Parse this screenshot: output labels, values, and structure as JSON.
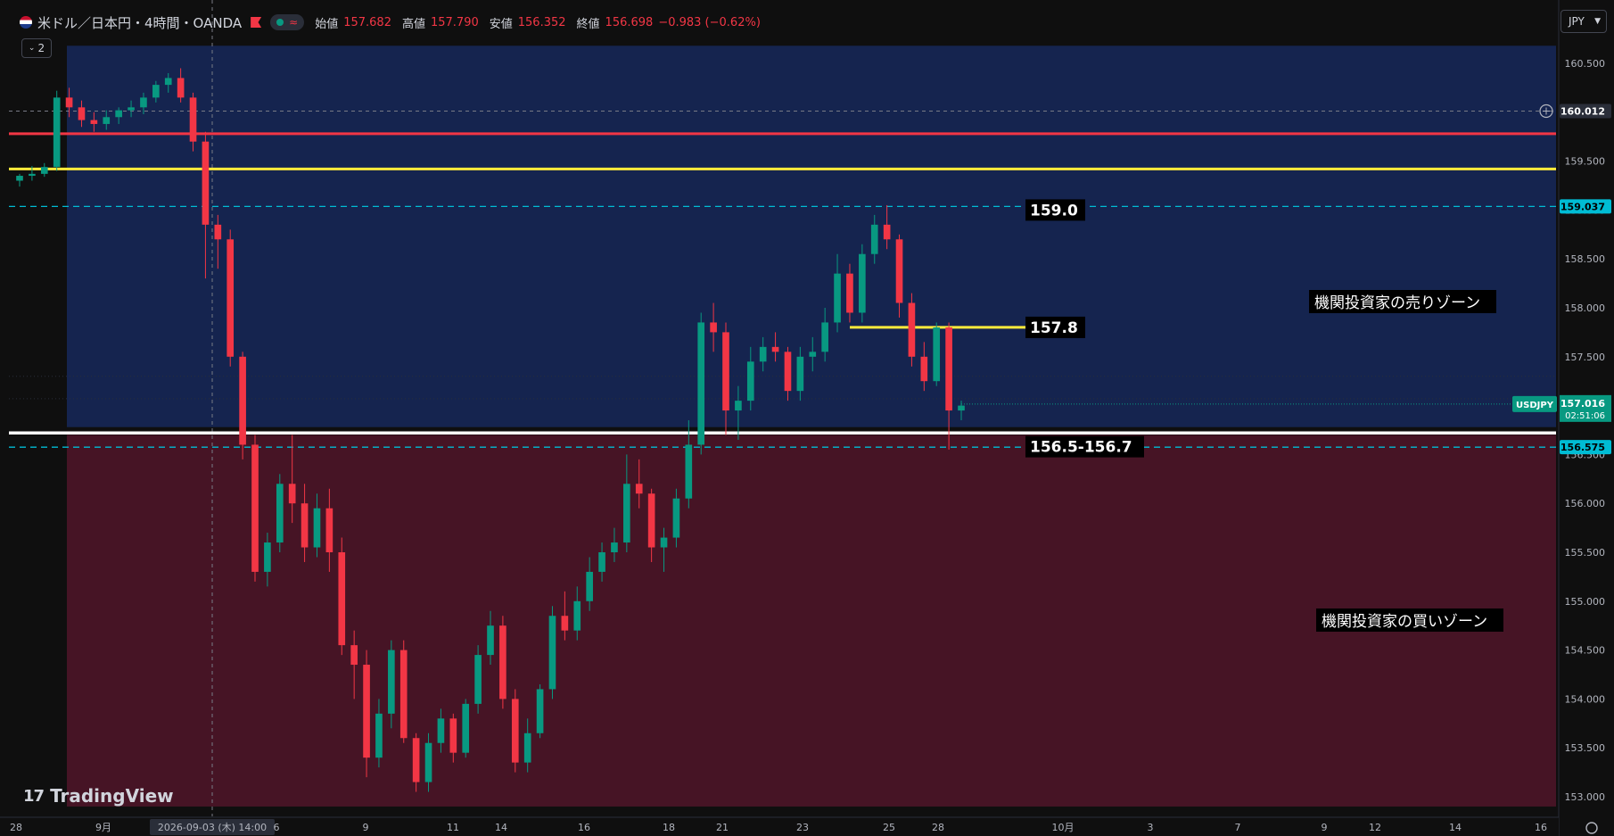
{
  "header": {
    "symbol": "米ドル／日本円・4時間・OANDA",
    "collapse_count": "2",
    "ohlc": [
      {
        "label": "始値",
        "value": "157.682"
      },
      {
        "label": "高値",
        "value": "157.790"
      },
      {
        "label": "安値",
        "value": "156.352"
      },
      {
        "label": "終値",
        "value": "156.698"
      }
    ],
    "change": "−0.983 (−0.62%)"
  },
  "currency_button": "JPY",
  "logo_text": "TradingView",
  "colors": {
    "up": "#089981",
    "down": "#f23645",
    "sell_zone": "#15244f",
    "buy_zone": "#461425",
    "yellow": "#ffeb3b",
    "red_line": "#f23645",
    "cyan": "#00bcd4"
  },
  "chart_data": {
    "type": "candlestick",
    "ylim": [
      152.9,
      160.85
    ],
    "y_ticks": [
      "160.500",
      "160.000",
      "159.500",
      "159.000",
      "158.500",
      "158.000",
      "157.500",
      "157.000",
      "156.500",
      "156.000",
      "155.500",
      "155.000",
      "154.500",
      "154.000",
      "153.500",
      "153.000"
    ],
    "x_ticks": [
      "28",
      "9月",
      "2026-09-03 (木)   14:00",
      "6",
      "9",
      "11",
      "14",
      "16",
      "18",
      "21",
      "23",
      "25",
      "28",
      "10月",
      "3",
      "7",
      "9",
      "12",
      "14",
      "16"
    ],
    "candles": [
      [
        159.3,
        159.37,
        159.24,
        159.35
      ],
      [
        159.35,
        159.45,
        159.3,
        159.37
      ],
      [
        159.37,
        159.48,
        159.34,
        159.44
      ],
      [
        159.44,
        160.22,
        159.4,
        160.15
      ],
      [
        160.15,
        160.25,
        159.95,
        160.05
      ],
      [
        160.05,
        160.12,
        159.85,
        159.92
      ],
      [
        159.92,
        160.0,
        159.8,
        159.88
      ],
      [
        159.88,
        160.02,
        159.82,
        159.95
      ],
      [
        159.95,
        160.05,
        159.88,
        160.02
      ],
      [
        160.02,
        160.12,
        159.95,
        160.05
      ],
      [
        160.05,
        160.2,
        159.98,
        160.15
      ],
      [
        160.15,
        160.32,
        160.1,
        160.28
      ],
      [
        160.28,
        160.4,
        160.2,
        160.35
      ],
      [
        160.35,
        160.45,
        160.1,
        160.15
      ],
      [
        160.15,
        160.2,
        159.6,
        159.7
      ],
      [
        159.7,
        159.8,
        158.3,
        158.85
      ],
      [
        158.85,
        158.95,
        158.4,
        158.7
      ],
      [
        158.7,
        158.8,
        157.4,
        157.5
      ],
      [
        157.5,
        157.55,
        156.45,
        156.6
      ],
      [
        156.6,
        156.7,
        155.2,
        155.3
      ],
      [
        155.3,
        155.7,
        155.15,
        155.6
      ],
      [
        155.6,
        156.3,
        155.5,
        156.2
      ],
      [
        156.2,
        156.7,
        155.8,
        156.0
      ],
      [
        156.0,
        156.2,
        155.4,
        155.55
      ],
      [
        155.55,
        156.1,
        155.45,
        155.95
      ],
      [
        155.95,
        156.15,
        155.3,
        155.5
      ],
      [
        155.5,
        155.65,
        154.45,
        154.55
      ],
      [
        154.55,
        154.7,
        154.0,
        154.35
      ],
      [
        154.35,
        154.5,
        153.2,
        153.4
      ],
      [
        153.4,
        154.0,
        153.3,
        153.85
      ],
      [
        153.85,
        154.6,
        153.7,
        154.5
      ],
      [
        154.5,
        154.6,
        153.55,
        153.6
      ],
      [
        153.6,
        153.65,
        153.05,
        153.15
      ],
      [
        153.15,
        153.65,
        153.05,
        153.55
      ],
      [
        153.55,
        153.9,
        153.45,
        153.8
      ],
      [
        153.8,
        153.85,
        153.35,
        153.45
      ],
      [
        153.45,
        154.0,
        153.4,
        153.95
      ],
      [
        153.95,
        154.55,
        153.85,
        154.45
      ],
      [
        154.45,
        154.9,
        154.35,
        154.75
      ],
      [
        154.75,
        154.85,
        153.9,
        154.0
      ],
      [
        154.0,
        154.1,
        153.25,
        153.35
      ],
      [
        153.35,
        153.8,
        153.25,
        153.65
      ],
      [
        153.65,
        154.15,
        153.6,
        154.1
      ],
      [
        154.1,
        154.95,
        154.0,
        154.85
      ],
      [
        154.85,
        155.1,
        154.6,
        154.7
      ],
      [
        154.7,
        155.15,
        154.6,
        155.0
      ],
      [
        155.0,
        155.45,
        154.9,
        155.3
      ],
      [
        155.3,
        155.6,
        155.2,
        155.5
      ],
      [
        155.5,
        155.75,
        155.4,
        155.6
      ],
      [
        155.6,
        156.5,
        155.5,
        156.2
      ],
      [
        156.2,
        156.45,
        155.95,
        156.1
      ],
      [
        156.1,
        156.15,
        155.4,
        155.55
      ],
      [
        155.55,
        155.75,
        155.3,
        155.65
      ],
      [
        155.65,
        156.15,
        155.55,
        156.05
      ],
      [
        156.05,
        156.85,
        155.95,
        156.6
      ],
      [
        156.6,
        157.95,
        156.5,
        157.85
      ],
      [
        157.85,
        158.05,
        157.55,
        157.75
      ],
      [
        157.75,
        157.85,
        156.7,
        156.95
      ],
      [
        156.95,
        157.2,
        156.65,
        157.05
      ],
      [
        157.05,
        157.6,
        156.95,
        157.45
      ],
      [
        157.45,
        157.7,
        157.35,
        157.6
      ],
      [
        157.6,
        157.75,
        157.45,
        157.55
      ],
      [
        157.55,
        157.6,
        157.05,
        157.15
      ],
      [
        157.15,
        157.6,
        157.05,
        157.5
      ],
      [
        157.5,
        157.7,
        157.35,
        157.55
      ],
      [
        157.55,
        158.0,
        157.45,
        157.85
      ],
      [
        157.85,
        158.55,
        157.75,
        158.35
      ],
      [
        158.35,
        158.45,
        157.85,
        157.95
      ],
      [
        157.95,
        158.65,
        157.85,
        158.55
      ],
      [
        158.55,
        158.95,
        158.45,
        158.85
      ],
      [
        158.85,
        159.05,
        158.6,
        158.7
      ],
      [
        158.7,
        158.75,
        157.9,
        158.05
      ],
      [
        158.05,
        158.15,
        157.4,
        157.5
      ],
      [
        157.5,
        157.65,
        157.15,
        157.25
      ],
      [
        157.25,
        157.85,
        157.2,
        157.8
      ],
      [
        157.8,
        157.85,
        156.55,
        156.95
      ],
      [
        156.95,
        157.05,
        156.85,
        157.0
      ]
    ],
    "sell_zone": {
      "top": 160.68,
      "bottom": 156.78,
      "label": "機関投資家の売りゾーン"
    },
    "buy_zone": {
      "top": 156.7,
      "bottom": 152.9,
      "label": "機関投資家の買いゾーン"
    },
    "levels": [
      {
        "price": 159.78,
        "style": "red-solid"
      },
      {
        "price": 159.42,
        "style": "yellow-solid"
      },
      {
        "price": 159.037,
        "style": "cyan-dashed",
        "tag": "159.037"
      },
      {
        "price": 156.575,
        "style": "cyan-dashed",
        "tag": "156.575"
      },
      {
        "price": 156.72,
        "style": "white-solid"
      },
      {
        "price": 157.8,
        "style": "yellow-segment"
      },
      {
        "price": 160.012,
        "style": "crosshair",
        "tag": "160.012"
      }
    ],
    "level_labels": [
      "159.0",
      "157.8",
      "156.5-156.7"
    ],
    "current_price": {
      "symbol": "USDJPY",
      "price": "157.016",
      "countdown": "02:51:06",
      "value": 157.016
    }
  }
}
